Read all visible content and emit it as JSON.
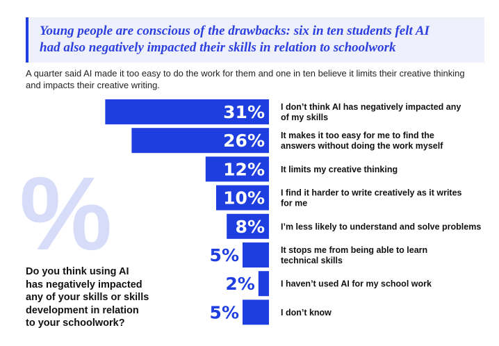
{
  "title_lines": [
    "Young people are conscious of the drawbacks: six in ten students felt AI",
    "had also negatively impacted their skills in relation to schoolwork"
  ],
  "subtitle_lines": [
    "A quarter said AI made it too easy to do the work for them and one in ten believe it limits their creative thinking",
    "and impacts their creative writing."
  ],
  "question_lines": [
    "Do you think using AI",
    "has negatively impacted",
    "any of your skills or skills",
    "development in relation",
    "to your schoolwork?"
  ],
  "decor_symbol": "%",
  "colors": {
    "bar": "#1f3ee0",
    "title": "#2c3fe0",
    "title_bg": "#eef0fb",
    "decor": "#d7ddf9"
  },
  "chart_data": {
    "type": "bar",
    "orientation": "horizontal",
    "unit": "%",
    "categories": [
      [
        "I don’t think AI has negatively impacted any",
        "of my skills"
      ],
      [
        "It makes it too easy for me to find the",
        "answers without doing the work myself"
      ],
      [
        "It limits my creative thinking"
      ],
      [
        "I find it harder to write creatively as it writes",
        "for me"
      ],
      [
        "I’m less likely to understand and solve problems"
      ],
      [
        "It stops me from being able to learn",
        "technical skills"
      ],
      [
        "I haven’t used AI for my school work"
      ],
      [
        "I don’t know"
      ]
    ],
    "values": [
      31,
      26,
      12,
      10,
      8,
      5,
      2,
      5
    ],
    "value_labels": [
      "31%",
      "26%",
      "12%",
      "10%",
      "8%",
      "5%",
      "2%",
      "5%"
    ]
  }
}
